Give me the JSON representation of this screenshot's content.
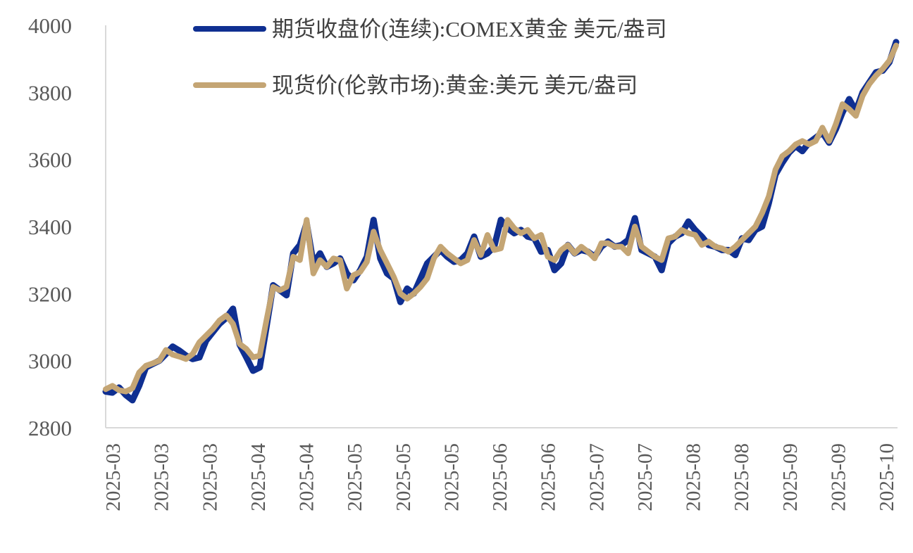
{
  "chart_data": {
    "type": "line",
    "title": "",
    "xlabel": "",
    "ylabel": "",
    "ylim": [
      2800,
      4000
    ],
    "yticks": [
      "4000",
      "3800",
      "3600",
      "3400",
      "3200",
      "3000",
      "2800"
    ],
    "xticks": [
      "2025-03",
      "2025-03",
      "2025-03",
      "2025-04",
      "2025-04",
      "2025-05",
      "2025-05",
      "2025-05",
      "2025-06",
      "2025-06",
      "2025-07",
      "2025-07",
      "2025-08",
      "2025-08",
      "2025-09",
      "2025-09",
      "2025-10"
    ],
    "grid": false,
    "legend_position": "top",
    "series": [
      {
        "name": "期货收盘价(连续):COMEX黄金 美元/盎司",
        "color": "#0f2f91",
        "values": [
          2908,
          2905,
          2920,
          2898,
          2882,
          2925,
          2980,
          2990,
          3000,
          3020,
          3042,
          3030,
          3015,
          3005,
          3010,
          3060,
          3085,
          3110,
          3128,
          3155,
          3048,
          3010,
          2970,
          2980,
          3100,
          3225,
          3210,
          3195,
          3320,
          3345,
          3410,
          3290,
          3320,
          3280,
          3290,
          3305,
          3260,
          3240,
          3270,
          3310,
          3420,
          3305,
          3260,
          3245,
          3175,
          3215,
          3200,
          3245,
          3290,
          3310,
          3330,
          3310,
          3295,
          3300,
          3320,
          3370,
          3310,
          3320,
          3340,
          3420,
          3395,
          3380,
          3390,
          3370,
          3365,
          3325,
          3330,
          3270,
          3290,
          3345,
          3320,
          3330,
          3325,
          3310,
          3340,
          3355,
          3340,
          3345,
          3360,
          3425,
          3330,
          3320,
          3310,
          3270,
          3350,
          3370,
          3380,
          3415,
          3390,
          3370,
          3345,
          3340,
          3330,
          3330,
          3315,
          3365,
          3360,
          3390,
          3400,
          3470,
          3555,
          3590,
          3620,
          3640,
          3625,
          3650,
          3665,
          3680,
          3650,
          3690,
          3740,
          3780,
          3745,
          3800,
          3830,
          3860,
          3865,
          3890,
          3950
        ]
      },
      {
        "name": "现货价(伦敦市场):黄金:美元 美元/盎司",
        "color": "#c4a574",
        "values": [
          2915,
          2925,
          2912,
          2908,
          2918,
          2965,
          2985,
          2992,
          3000,
          3032,
          3018,
          3012,
          3005,
          3020,
          3055,
          3075,
          3095,
          3120,
          3135,
          3110,
          3050,
          3035,
          3010,
          3015,
          3120,
          3220,
          3210,
          3220,
          3310,
          3300,
          3420,
          3260,
          3300,
          3280,
          3305,
          3300,
          3215,
          3255,
          3265,
          3295,
          3385,
          3330,
          3290,
          3250,
          3200,
          3185,
          3200,
          3220,
          3245,
          3305,
          3340,
          3320,
          3305,
          3290,
          3300,
          3360,
          3315,
          3375,
          3330,
          3335,
          3420,
          3395,
          3380,
          3390,
          3365,
          3375,
          3310,
          3300,
          3330,
          3345,
          3320,
          3340,
          3325,
          3305,
          3350,
          3350,
          3340,
          3340,
          3320,
          3400,
          3340,
          3325,
          3310,
          3300,
          3365,
          3370,
          3390,
          3380,
          3375,
          3345,
          3355,
          3340,
          3335,
          3325,
          3340,
          3360,
          3380,
          3400,
          3440,
          3490,
          3570,
          3610,
          3625,
          3645,
          3655,
          3645,
          3655,
          3695,
          3655,
          3705,
          3765,
          3750,
          3730,
          3790,
          3825,
          3850,
          3870,
          3895,
          3940
        ]
      }
    ]
  }
}
